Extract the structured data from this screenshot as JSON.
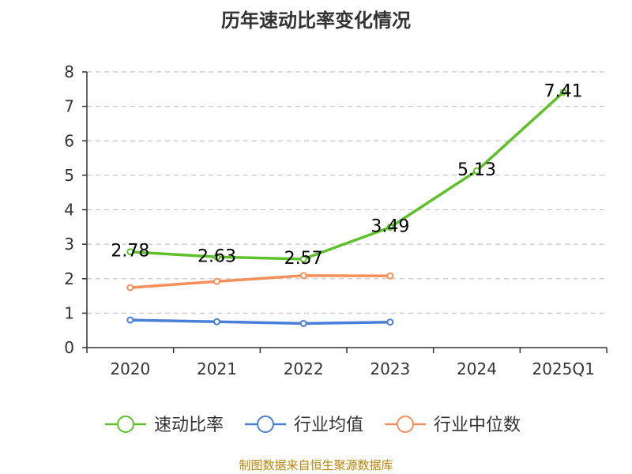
{
  "chart_data": {
    "type": "line",
    "title": "历年速动比率变化情况",
    "categories": [
      "2020",
      "2021",
      "2022",
      "2023",
      "2024",
      "2025Q1"
    ],
    "ylim": [
      0,
      8
    ],
    "yticks": [
      "0",
      "1",
      "2",
      "3",
      "4",
      "5",
      "6",
      "7",
      "8"
    ],
    "grid": true,
    "legend_position": "bottom",
    "series": [
      {
        "name": "速动比率",
        "color": "#5ec12c",
        "values": [
          2.78,
          2.63,
          2.57,
          3.49,
          5.13,
          7.41
        ],
        "labels": [
          "2.78",
          "2.63",
          "2.57",
          "3.49",
          "5.13",
          "7.41"
        ]
      },
      {
        "name": "行业均值",
        "color": "#4a7fd8",
        "values": [
          0.8,
          0.75,
          0.7,
          0.74,
          null,
          null
        ]
      },
      {
        "name": "行业中位数",
        "color": "#f5905a",
        "values": [
          1.74,
          1.92,
          2.09,
          2.08,
          null,
          null
        ]
      }
    ]
  },
  "source": "制图数据来自恒生聚源数据库"
}
